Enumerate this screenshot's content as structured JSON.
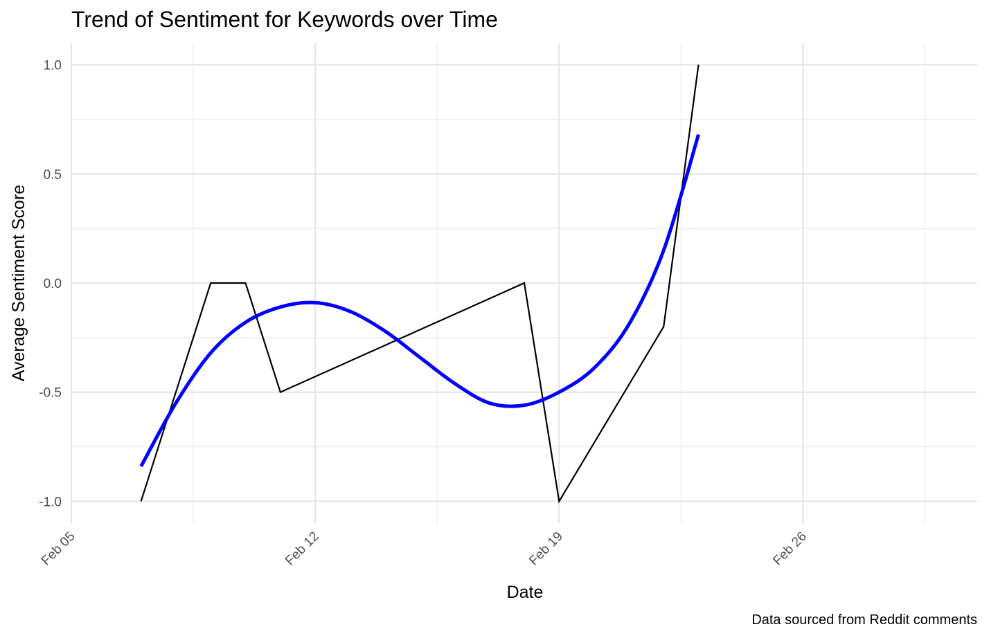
{
  "chart_data": {
    "type": "line",
    "title": "Trend of Sentiment for Keywords over Time",
    "xlabel": "Date",
    "ylabel": "Average Sentiment Score",
    "caption": "Data sourced from Reddit comments",
    "x_axis_type": "date",
    "xlim": [
      "2024-02-05",
      "2024-03-02"
    ],
    "ylim": [
      -1.1,
      1.1
    ],
    "x_ticks": [
      {
        "date": "2024-02-05",
        "label": "Feb 05"
      },
      {
        "date": "2024-02-12",
        "label": "Feb 12"
      },
      {
        "date": "2024-02-19",
        "label": "Feb 19"
      },
      {
        "date": "2024-02-26",
        "label": "Feb 26"
      }
    ],
    "x_minor_ticks": [
      "2024-02-08T12:00",
      "2024-02-15T12:00",
      "2024-02-22T12:00",
      "2024-02-29T12:00"
    ],
    "y_ticks": [
      {
        "value": -1.0,
        "label": "-1.0"
      },
      {
        "value": -0.5,
        "label": "-0.5"
      },
      {
        "value": 0.0,
        "label": "0.0"
      },
      {
        "value": 0.5,
        "label": "0.5"
      },
      {
        "value": 1.0,
        "label": "1.0"
      }
    ],
    "y_minor_ticks": [
      -0.75,
      -0.25,
      0.25,
      0.75
    ],
    "grid": true,
    "legend": "none",
    "series": [
      {
        "kind": "line",
        "color": "#000000",
        "points": [
          {
            "x": "2024-02-07",
            "y": -1.0
          },
          {
            "x": "2024-02-09",
            "y": 0.0
          },
          {
            "x": "2024-02-10",
            "y": 0.0
          },
          {
            "x": "2024-02-11",
            "y": -0.5
          },
          {
            "x": "2024-02-18",
            "y": 0.0
          },
          {
            "x": "2024-02-19",
            "y": -1.0
          },
          {
            "x": "2024-02-22",
            "y": -0.2
          },
          {
            "x": "2024-02-23",
            "y": 1.0
          }
        ]
      },
      {
        "kind": "smooth",
        "color": "#0000ff",
        "points": [
          {
            "x": "2024-02-07",
            "y": -0.84
          },
          {
            "x": "2024-02-08",
            "y": -0.55
          },
          {
            "x": "2024-02-09",
            "y": -0.32
          },
          {
            "x": "2024-02-10",
            "y": -0.18
          },
          {
            "x": "2024-02-11",
            "y": -0.11
          },
          {
            "x": "2024-02-12",
            "y": -0.09
          },
          {
            "x": "2024-02-13",
            "y": -0.13
          },
          {
            "x": "2024-02-14",
            "y": -0.22
          },
          {
            "x": "2024-02-15",
            "y": -0.34
          },
          {
            "x": "2024-02-16",
            "y": -0.46
          },
          {
            "x": "2024-02-17",
            "y": -0.55
          },
          {
            "x": "2024-02-18",
            "y": -0.56
          },
          {
            "x": "2024-02-19",
            "y": -0.5
          },
          {
            "x": "2024-02-20",
            "y": -0.39
          },
          {
            "x": "2024-02-21",
            "y": -0.19
          },
          {
            "x": "2024-02-22",
            "y": 0.15
          },
          {
            "x": "2024-02-23",
            "y": 0.68
          }
        ]
      }
    ]
  }
}
